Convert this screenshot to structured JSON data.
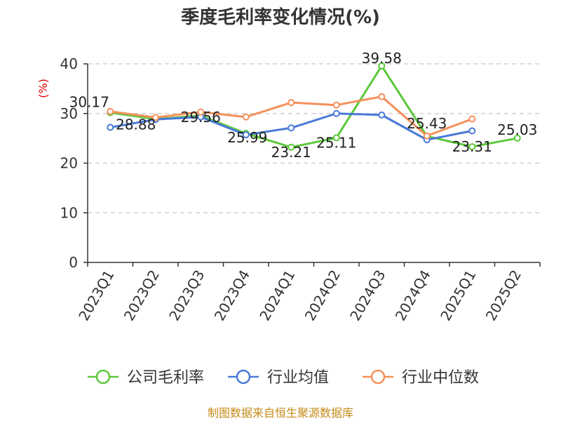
{
  "chart_data": {
    "type": "line",
    "title": "季度毛利率变化情况(%)",
    "unit_label": "(%)",
    "categories": [
      "2023Q1",
      "2023Q2",
      "2023Q3",
      "2023Q4",
      "2024Q1",
      "2024Q2",
      "2024Q3",
      "2024Q4",
      "2025Q1",
      "2025Q2"
    ],
    "ylim": [
      0,
      40
    ],
    "yticks": [
      0,
      10,
      20,
      30,
      40
    ],
    "grid": true,
    "legend_position": "bottom",
    "series": [
      {
        "name": "公司毛利率",
        "color": "#5cc83a",
        "values": [
          30.17,
          28.88,
          29.56,
          25.99,
          23.21,
          25.11,
          39.58,
          25.43,
          23.31,
          25.03
        ],
        "labels": [
          "30.17",
          "28.88",
          "29.56",
          "25.99",
          "23.21",
          "25.11",
          "39.58",
          "25.43",
          "23.31",
          "25.03"
        ]
      },
      {
        "name": "行业均值",
        "color": "#4a7ad8",
        "values": [
          27.2,
          28.8,
          29.3,
          25.7,
          27.1,
          30.0,
          29.7,
          24.7,
          26.5,
          null
        ]
      },
      {
        "name": "行业中位数",
        "color": "#f5905c",
        "values": [
          30.4,
          29.2,
          30.3,
          29.3,
          32.2,
          31.7,
          33.4,
          25.5,
          28.9,
          null
        ]
      }
    ],
    "source": "制图数据来自恒生聚源数据库"
  }
}
